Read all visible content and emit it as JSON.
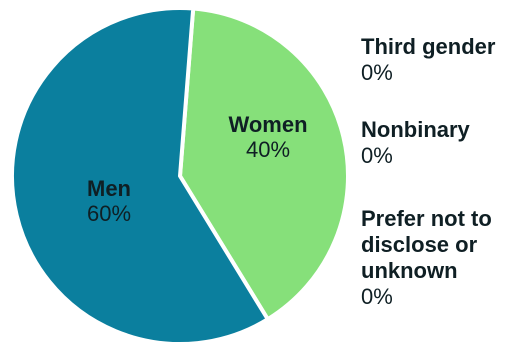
{
  "chart_data": {
    "type": "pie",
    "slices": [
      {
        "label": "Men",
        "value": 60,
        "display": "60%",
        "color": "#0b7f9e"
      },
      {
        "label": "Women",
        "value": 40,
        "display": "40%",
        "color": "#86e07a"
      },
      {
        "label": "Third gender",
        "value": 0,
        "display": "0%"
      },
      {
        "label": "Nonbinary",
        "value": 0,
        "display": "0%"
      },
      {
        "label": "Prefer not to disclose or unknown",
        "value": 0,
        "display": "0%"
      }
    ],
    "slice_border_color": "#ffffff",
    "text_color": "#0f1f24"
  }
}
